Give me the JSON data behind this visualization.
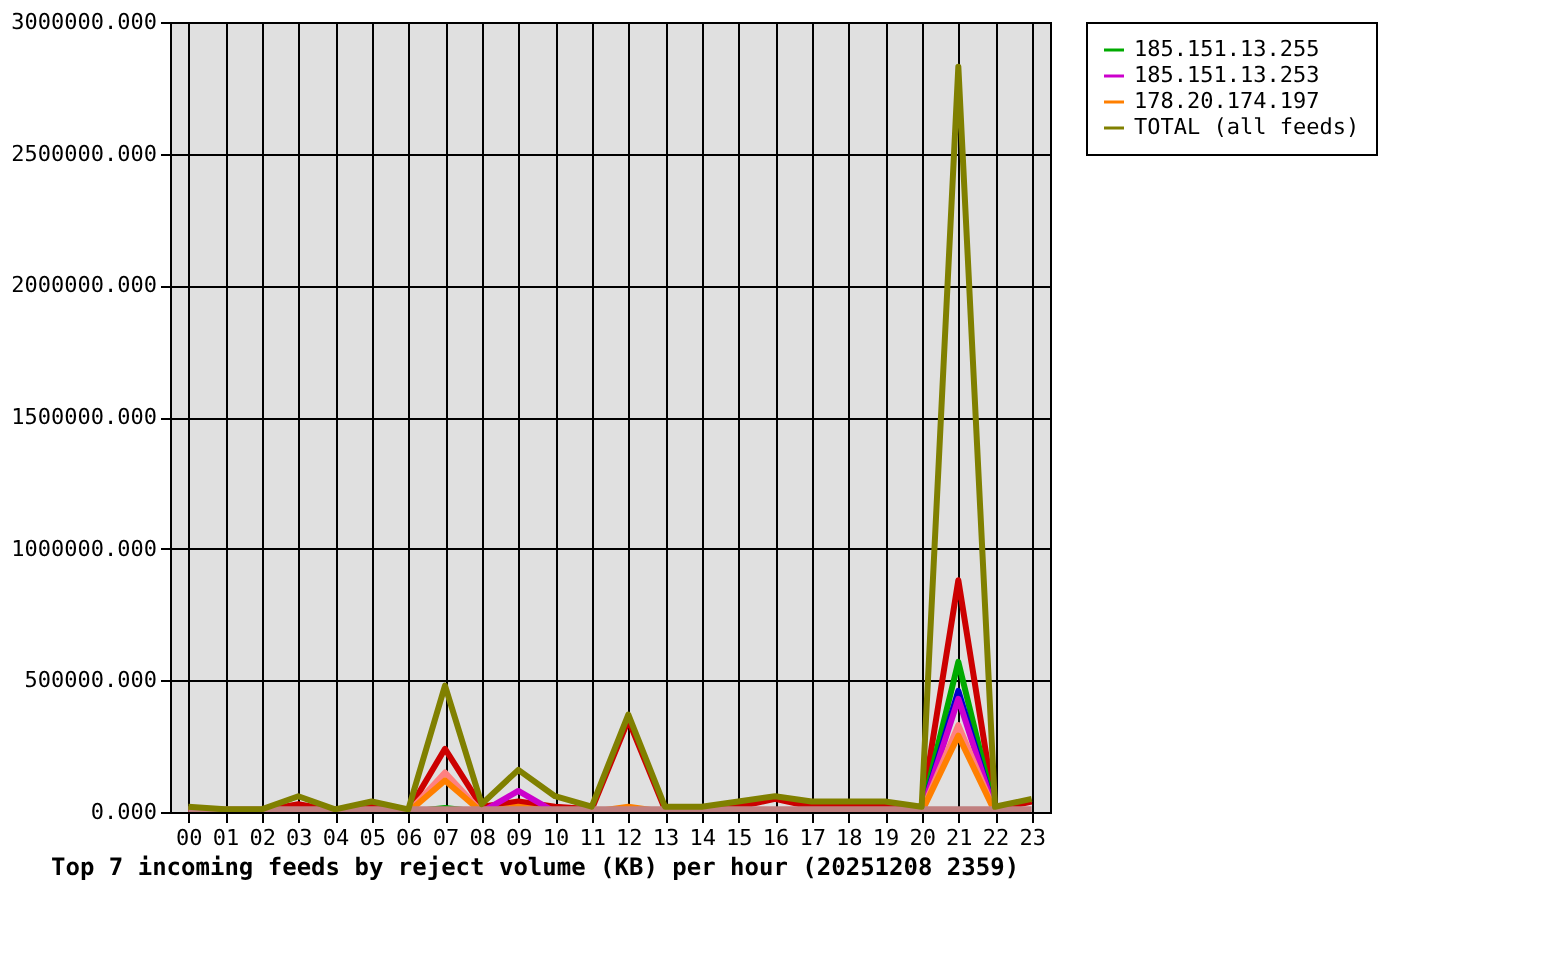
{
  "chart_data": {
    "type": "line",
    "xlabel": "Top 7 incoming feeds by reject volume (KB) per hour (20251208 2359)",
    "categories": [
      "00",
      "01",
      "02",
      "03",
      "04",
      "05",
      "06",
      "07",
      "08",
      "09",
      "10",
      "11",
      "12",
      "13",
      "14",
      "15",
      "16",
      "17",
      "18",
      "19",
      "20",
      "21",
      "22",
      "23"
    ],
    "ylim": [
      0,
      3000000
    ],
    "yticks": [
      {
        "value": 0,
        "label": "0.000"
      },
      {
        "value": 500000,
        "label": "500000.000"
      },
      {
        "value": 1000000,
        "label": "1000000.000"
      },
      {
        "value": 1500000,
        "label": "1500000.000"
      },
      {
        "value": 2000000,
        "label": "2000000.000"
      },
      {
        "value": 2500000,
        "label": "2500000.000"
      },
      {
        "value": 3000000,
        "label": "3000000.000"
      }
    ],
    "grid": true,
    "legend": "top right",
    "series": [
      {
        "color": "#cc0000",
        "values": [
          5000,
          5000,
          5000,
          30000,
          5000,
          20000,
          5000,
          240000,
          20000,
          40000,
          20000,
          10000,
          350000,
          10000,
          10000,
          20000,
          50000,
          20000,
          20000,
          20000,
          10000,
          880000,
          10000,
          40000
        ]
      },
      {
        "name": "185.151.13.255",
        "color": "#00aa00",
        "values": [
          null,
          null,
          null,
          null,
          null,
          null,
          0,
          15000,
          0,
          null,
          null,
          null,
          null,
          null,
          null,
          null,
          null,
          null,
          null,
          null,
          0,
          570000,
          0,
          null
        ]
      },
      {
        "color": "#0000cc",
        "values": [
          null,
          null,
          null,
          null,
          null,
          null,
          null,
          null,
          null,
          null,
          null,
          null,
          null,
          null,
          null,
          null,
          null,
          null,
          null,
          null,
          0,
          460000,
          0,
          null
        ]
      },
      {
        "name": "185.151.13.253",
        "color": "#cc00cc",
        "values": [
          null,
          null,
          null,
          null,
          null,
          null,
          null,
          null,
          0,
          80000,
          0,
          null,
          null,
          null,
          null,
          null,
          null,
          null,
          null,
          null,
          0,
          430000,
          0,
          null
        ]
      },
      {
        "color": "#ff8080",
        "values": [
          null,
          null,
          null,
          null,
          null,
          null,
          0,
          150000,
          0,
          null,
          null,
          null,
          null,
          null,
          null,
          null,
          null,
          null,
          null,
          null,
          0,
          330000,
          0,
          null
        ]
      },
      {
        "name": "178.20.174.197",
        "color": "#ff7f00",
        "values": [
          null,
          null,
          null,
          null,
          null,
          null,
          0,
          120000,
          0,
          20000,
          0,
          0,
          20000,
          0,
          null,
          null,
          null,
          null,
          null,
          null,
          0,
          290000,
          0,
          null
        ]
      },
      {
        "color": "#c08080",
        "values": [
          10000,
          10000,
          10000,
          10000,
          10000,
          10000,
          10000,
          10000,
          10000,
          10000,
          10000,
          10000,
          10000,
          10000,
          10000,
          10000,
          10000,
          10000,
          10000,
          10000,
          10000,
          10000,
          10000,
          10000
        ]
      },
      {
        "name": "TOTAL (all feeds)",
        "color": "#808000",
        "values": [
          20000,
          10000,
          10000,
          60000,
          10000,
          40000,
          10000,
          480000,
          30000,
          160000,
          60000,
          20000,
          370000,
          20000,
          20000,
          40000,
          60000,
          40000,
          40000,
          40000,
          20000,
          2830000,
          20000,
          50000
        ]
      }
    ]
  }
}
